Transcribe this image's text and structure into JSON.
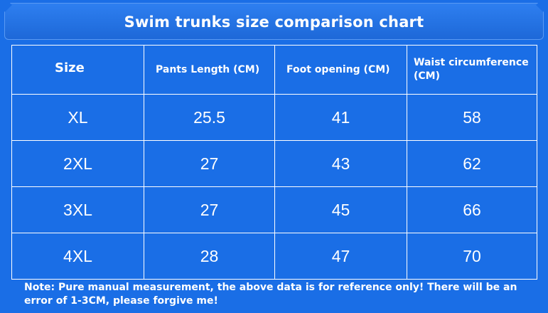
{
  "title": "Swim trunks size comparison chart",
  "table": {
    "headers": [
      "Size",
      "Pants Length (CM)",
      "Foot opening (CM)",
      "Waist circumference (CM)"
    ],
    "rows": [
      [
        "XL",
        "25.5",
        "41",
        "58"
      ],
      [
        "2XL",
        "27",
        "43",
        "62"
      ],
      [
        "3XL",
        "27",
        "45",
        "66"
      ],
      [
        "4XL",
        "28",
        "47",
        "70"
      ]
    ]
  },
  "note": "Note: Pure manual measurement, the above data is for reference only! There will be an error of 1-3CM, please forgive me!",
  "colors": {
    "background": "#1a6ee6",
    "text": "#ffffff",
    "grid": "#ffffff"
  }
}
